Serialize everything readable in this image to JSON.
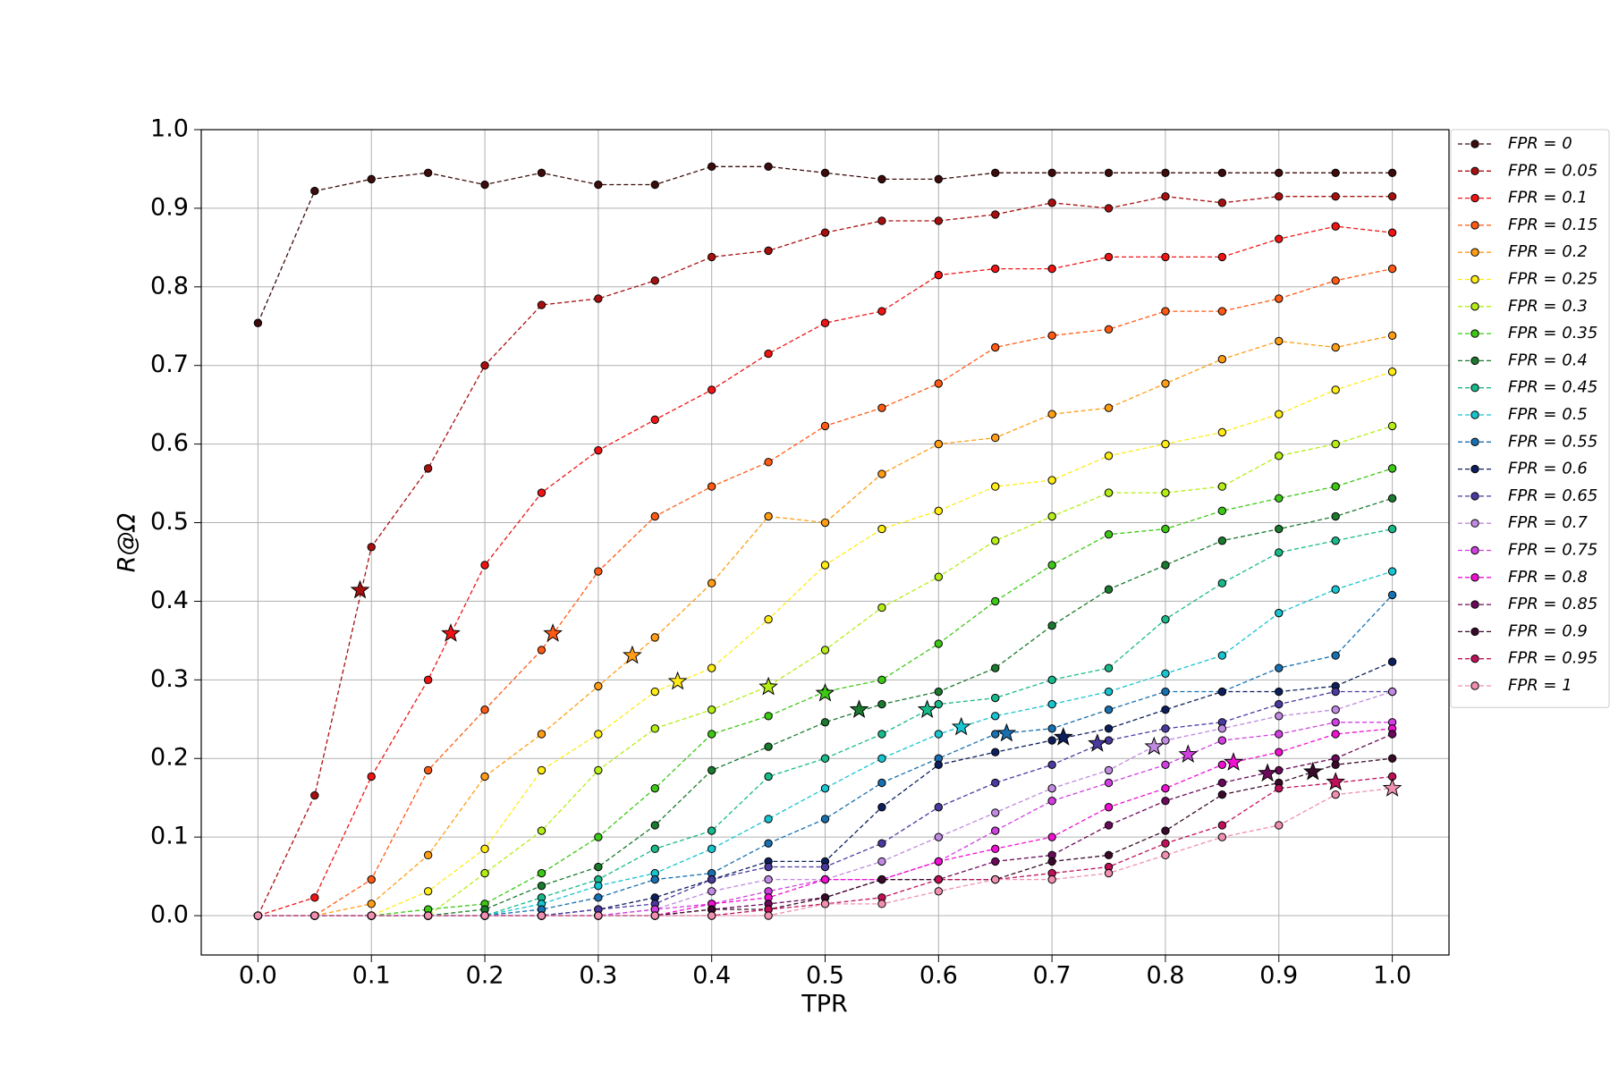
{
  "chart_data": {
    "type": "line",
    "x_label": "TPR",
    "y_label": "R@Ω",
    "x": [
      0,
      0.05,
      0.1,
      0.15,
      0.2,
      0.25,
      0.3,
      0.35,
      0.4,
      0.45,
      0.5,
      0.55,
      0.6,
      0.65,
      0.7,
      0.75,
      0.8,
      0.85,
      0.9,
      0.95,
      1.0
    ],
    "xlim": [
      -0.05,
      1.05
    ],
    "ylim": [
      -0.05,
      1.0
    ],
    "xticks": [
      {
        "value": 0,
        "label": "0.0"
      },
      0.1,
      0.2,
      0.3,
      0.4,
      0.5,
      0.6,
      0.7,
      0.8,
      0.9,
      {
        "value": 1,
        "label": "1.0"
      }
    ],
    "yticks": [
      {
        "value": 0,
        "label": "0.0"
      },
      0.1,
      0.2,
      0.3,
      0.4,
      0.5,
      0.6,
      0.7,
      0.8,
      0.9,
      {
        "value": 1,
        "label": "1.0"
      }
    ],
    "grid": true,
    "legend": "outside-right",
    "series": [
      {
        "name": "FPR = 0",
        "color": "#3d0c0c",
        "values": [
          0.754,
          0.922,
          0.937,
          0.945,
          0.93,
          0.945,
          0.93,
          0.93,
          0.953,
          0.953,
          0.945,
          0.937,
          0.937,
          0.945,
          0.945,
          0.945,
          0.945,
          0.945,
          0.945,
          0.945,
          0.945
        ]
      },
      {
        "name": "FPR = 0.05",
        "color": "#a81010",
        "values": [
          0,
          0.153,
          0.469,
          0.569,
          0.7,
          0.777,
          0.785,
          0.808,
          0.838,
          0.846,
          0.869,
          0.884,
          0.884,
          0.892,
          0.907,
          0.9,
          0.915,
          0.907,
          0.915,
          0.915,
          0.915
        ],
        "star_x": 0.09,
        "star_y": 0.414
      },
      {
        "name": "FPR = 0.1",
        "color": "#f01414",
        "values": [
          0,
          0.023,
          0.177,
          0.3,
          0.446,
          0.538,
          0.592,
          0.631,
          0.669,
          0.715,
          0.754,
          0.769,
          0.815,
          0.823,
          0.823,
          0.838,
          0.838,
          0.838,
          0.861,
          0.877,
          0.869
        ],
        "star_x": 0.17,
        "star_y": 0.359
      },
      {
        "name": "FPR = 0.15",
        "color": "#ff5a14",
        "values": [
          0,
          0,
          0.046,
          0.185,
          0.262,
          0.338,
          0.438,
          0.508,
          0.546,
          0.577,
          0.623,
          0.646,
          0.677,
          0.723,
          0.738,
          0.746,
          0.769,
          0.769,
          0.785,
          0.808,
          0.823
        ],
        "star_x": 0.26,
        "star_y": 0.359
      },
      {
        "name": "FPR = 0.2",
        "color": "#ff9d14",
        "values": [
          0,
          0,
          0.015,
          0.077,
          0.177,
          0.231,
          0.292,
          0.354,
          0.423,
          0.508,
          0.5,
          0.562,
          0.6,
          0.608,
          0.638,
          0.646,
          0.677,
          0.708,
          0.731,
          0.723,
          0.738
        ],
        "star_x": 0.33,
        "star_y": 0.331
      },
      {
        "name": "FPR = 0.25",
        "color": "#ffec14",
        "values": [
          0,
          0,
          0,
          0.031,
          0.085,
          0.185,
          0.231,
          0.285,
          0.315,
          0.377,
          0.446,
          0.492,
          0.515,
          0.546,
          0.554,
          0.585,
          0.6,
          0.615,
          0.638,
          0.669,
          0.692
        ],
        "star_x": 0.37,
        "star_y": 0.298
      },
      {
        "name": "FPR = 0.3",
        "color": "#b4ee14",
        "values": [
          0,
          0,
          0,
          0,
          0.054,
          0.108,
          0.185,
          0.238,
          0.262,
          0.292,
          0.338,
          0.392,
          0.431,
          0.477,
          0.508,
          0.538,
          0.538,
          0.546,
          0.585,
          0.6,
          0.623
        ],
        "star_x": 0.45,
        "star_y": 0.291
      },
      {
        "name": "FPR = 0.35",
        "color": "#3cc814",
        "values": [
          0,
          0,
          0,
          0.008,
          0.015,
          0.054,
          0.1,
          0.162,
          0.231,
          0.254,
          0.285,
          0.3,
          0.346,
          0.4,
          0.446,
          0.485,
          0.492,
          0.515,
          0.531,
          0.546,
          0.569
        ],
        "star_x": 0.5,
        "star_y": 0.283
      },
      {
        "name": "FPR = 0.4",
        "color": "#1a7a2e",
        "values": [
          0,
          0,
          0,
          0,
          0.008,
          0.038,
          0.062,
          0.115,
          0.185,
          0.215,
          0.246,
          0.269,
          0.285,
          0.315,
          0.369,
          0.415,
          0.446,
          0.477,
          0.492,
          0.508,
          0.531
        ],
        "star_x": 0.53,
        "star_y": 0.262
      },
      {
        "name": "FPR = 0.45",
        "color": "#18b98a",
        "values": [
          0,
          0,
          0,
          0,
          0,
          0.023,
          0.046,
          0.085,
          0.108,
          0.177,
          0.2,
          0.231,
          0.269,
          0.277,
          0.3,
          0.315,
          0.377,
          0.423,
          0.462,
          0.477,
          0.492
        ],
        "star_x": 0.59,
        "star_y": 0.262
      },
      {
        "name": "FPR = 0.5",
        "color": "#18c4d0",
        "values": [
          0,
          0,
          0,
          0,
          0,
          0.015,
          0.038,
          0.054,
          0.085,
          0.123,
          0.162,
          0.2,
          0.231,
          0.254,
          0.269,
          0.285,
          0.308,
          0.331,
          0.385,
          0.415,
          0.438
        ],
        "star_x": 0.62,
        "star_y": 0.24
      },
      {
        "name": "FPR = 0.55",
        "color": "#1870b0",
        "values": [
          0,
          0,
          0,
          0,
          0,
          0.008,
          0.023,
          0.046,
          0.054,
          0.092,
          0.123,
          0.169,
          0.2,
          0.231,
          0.238,
          0.262,
          0.285,
          0.285,
          0.315,
          0.331,
          0.408
        ],
        "star_x": 0.66,
        "star_y": 0.232
      },
      {
        "name": "FPR = 0.6",
        "color": "#0d1f5c",
        "values": [
          0,
          0,
          0,
          0,
          0,
          0,
          0.008,
          0.023,
          0.046,
          0.069,
          0.069,
          0.138,
          0.192,
          0.208,
          0.223,
          0.238,
          0.262,
          0.285,
          0.285,
          0.292,
          0.323
        ],
        "star_x": 0.71,
        "star_y": 0.227
      },
      {
        "name": "FPR = 0.65",
        "color": "#4a3aa0",
        "values": [
          0,
          0,
          0,
          0,
          0,
          0,
          0.008,
          0.015,
          0.046,
          0.062,
          0.062,
          0.092,
          0.138,
          0.169,
          0.192,
          0.223,
          0.238,
          0.246,
          0.269,
          0.285,
          0.285
        ],
        "star_x": 0.74,
        "star_y": 0.219
      },
      {
        "name": "FPR = 0.7",
        "color": "#c08ae0",
        "values": [
          0,
          0,
          0,
          0,
          0,
          0,
          0,
          0.008,
          0.031,
          0.046,
          0.046,
          0.069,
          0.1,
          0.131,
          0.162,
          0.185,
          0.223,
          0.238,
          0.254,
          0.262,
          0.285
        ],
        "star_x": 0.79,
        "star_y": 0.215
      },
      {
        "name": "FPR = 0.75",
        "color": "#d040e0",
        "values": [
          0,
          0,
          0,
          0,
          0,
          0,
          0,
          0.008,
          0.015,
          0.031,
          0.046,
          0.046,
          0.069,
          0.108,
          0.146,
          0.169,
          0.192,
          0.223,
          0.231,
          0.246,
          0.246
        ],
        "star_x": 0.82,
        "star_y": 0.205
      },
      {
        "name": "FPR = 0.8",
        "color": "#f010d0",
        "values": [
          0,
          0,
          0,
          0,
          0,
          0,
          0,
          0,
          0.015,
          0.023,
          0.046,
          0.046,
          0.069,
          0.085,
          0.1,
          0.138,
          0.162,
          0.192,
          0.208,
          0.231,
          0.238
        ],
        "star_x": 0.86,
        "star_y": 0.195
      },
      {
        "name": "FPR = 0.85",
        "color": "#6a0a5a",
        "values": [
          0,
          0,
          0,
          0,
          0,
          0,
          0,
          0,
          0.008,
          0.015,
          0.023,
          0.046,
          0.046,
          0.069,
          0.077,
          0.115,
          0.146,
          0.169,
          0.185,
          0.2,
          0.231
        ],
        "star_x": 0.89,
        "star_y": 0.181
      },
      {
        "name": "FPR = 0.9",
        "color": "#3a0a2a",
        "values": [
          0,
          0,
          0,
          0,
          0,
          0,
          0,
          0,
          0.008,
          0.008,
          0.023,
          0.046,
          0.046,
          0.046,
          0.069,
          0.077,
          0.108,
          0.154,
          0.169,
          0.192,
          0.2
        ],
        "star_x": 0.93,
        "star_y": 0.183
      },
      {
        "name": "FPR = 0.95",
        "color": "#c0105a",
        "values": [
          0,
          0,
          0,
          0,
          0,
          0,
          0,
          0,
          0,
          0.008,
          0.015,
          0.023,
          0.046,
          0.046,
          0.054,
          0.062,
          0.092,
          0.115,
          0.162,
          0.169,
          0.177
        ],
        "star_x": 0.95,
        "star_y": 0.17
      },
      {
        "name": "FPR = 1",
        "color": "#f090b0",
        "values": [
          0,
          0,
          0,
          0,
          0,
          0,
          0,
          0,
          0,
          0,
          0.015,
          0.015,
          0.031,
          0.046,
          0.046,
          0.054,
          0.077,
          0.1,
          0.115,
          0.154,
          0.162
        ],
        "star_x": 1.0,
        "star_y": 0.162
      }
    ]
  }
}
